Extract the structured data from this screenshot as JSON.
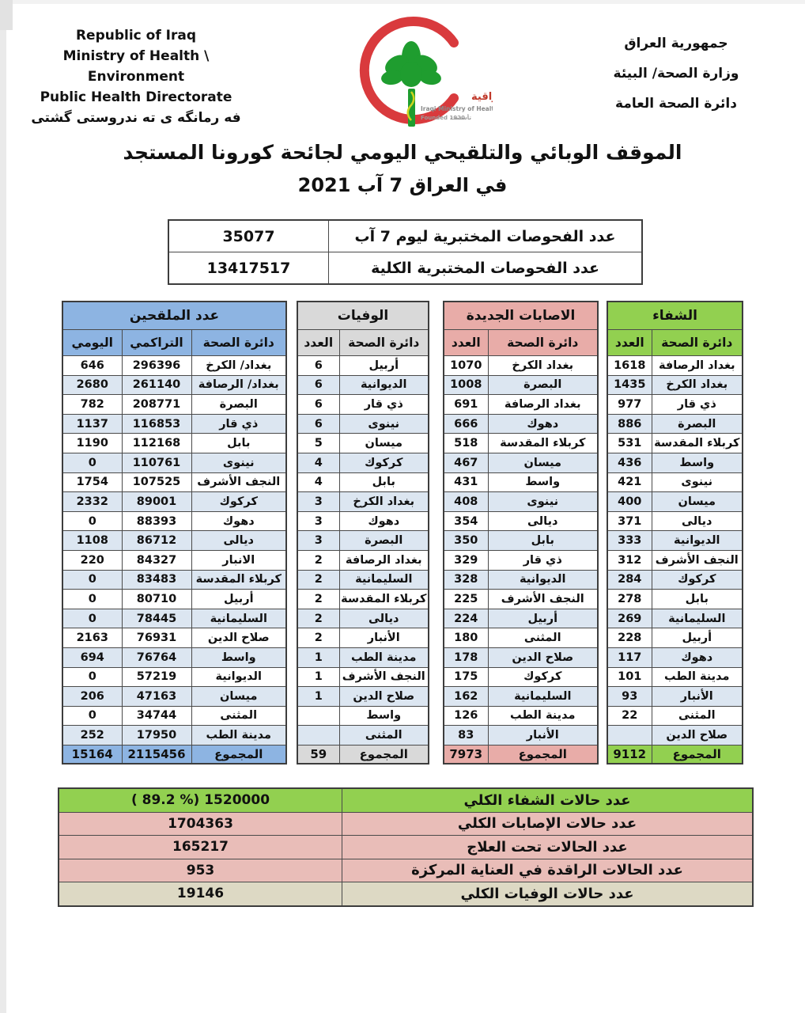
{
  "page": {
    "header_left": {
      "line1": "Republic of Iraq",
      "line2": "Ministry of Health \\ Environment",
      "line3": "Public Health Directorate",
      "line4": "فه رمانگه ی ته ندروستی گشتی"
    },
    "header_right": {
      "line1": "جمهورية العراق",
      "line2": "وزارة الصحة/ البيئة",
      "line3": "دائرة الصحة العامة"
    },
    "logo": {
      "arabic_name": "وزارة الصحة العراقية",
      "english_name": "Iraqi Ministry of Health",
      "founded": "Founded 1920",
      "founded_ar": "تأسست",
      "crescent_color": "#d93a3d",
      "tree_color": "#1f9d2f"
    },
    "title_line1": "الموقف الوبائي والتلقيحي اليومي لجائحة كورونا المستجد",
    "title_line2": "في العراق  7  آب  2021"
  },
  "tests_summary": {
    "rows": [
      {
        "label": "عدد الفحوصات المختبرية  ليوم 7 آب",
        "value": "35077"
      },
      {
        "label": "عدد الفحوصات المختبرية الكلية",
        "value": "13417517"
      }
    ]
  },
  "tables": {
    "vaccinated": {
      "title": "عدد الملقحين",
      "theme_color": "#8DB4E2",
      "stripe_color": "#DCE6F1",
      "columns": [
        "دائرة الصحة",
        "التراكمي",
        "اليومي"
      ],
      "rows": [
        {
          "name": "بغداد/ الكرخ",
          "cumulative": "296396",
          "daily": "646"
        },
        {
          "name": "بغداد/ الرصافة",
          "cumulative": "261140",
          "daily": "2680"
        },
        {
          "name": "البصرة",
          "cumulative": "208771",
          "daily": "782"
        },
        {
          "name": "ذي قار",
          "cumulative": "116853",
          "daily": "1137"
        },
        {
          "name": "بابل",
          "cumulative": "112168",
          "daily": "1190"
        },
        {
          "name": "نينوى",
          "cumulative": "110761",
          "daily": "0"
        },
        {
          "name": "النجف الأشرف",
          "cumulative": "107525",
          "daily": "1754"
        },
        {
          "name": "كركوك",
          "cumulative": "89001",
          "daily": "2332"
        },
        {
          "name": "دهوك",
          "cumulative": "88393",
          "daily": "0"
        },
        {
          "name": "ديالى",
          "cumulative": "86712",
          "daily": "1108"
        },
        {
          "name": "الانبار",
          "cumulative": "84327",
          "daily": "220"
        },
        {
          "name": "كربلاء المقدسة",
          "cumulative": "83483",
          "daily": "0"
        },
        {
          "name": "أربيل",
          "cumulative": "80710",
          "daily": "0"
        },
        {
          "name": "السليمانية",
          "cumulative": "78445",
          "daily": "0"
        },
        {
          "name": "صلاح الدين",
          "cumulative": "76931",
          "daily": "2163"
        },
        {
          "name": "واسط",
          "cumulative": "76764",
          "daily": "694"
        },
        {
          "name": "الديوانية",
          "cumulative": "57219",
          "daily": "0"
        },
        {
          "name": "ميسان",
          "cumulative": "47163",
          "daily": "206"
        },
        {
          "name": "المثنى",
          "cumulative": "34744",
          "daily": "0"
        },
        {
          "name": "مدينة الطب",
          "cumulative": "17950",
          "daily": "252"
        }
      ],
      "total": {
        "label": "المجموع",
        "cumulative": "2115456",
        "daily": "15164"
      }
    },
    "deaths": {
      "title": "الوفيات",
      "theme_color": "#D9D9D9",
      "columns": [
        "دائرة الصحة",
        "العدد"
      ],
      "rows": [
        {
          "name": "أربيل",
          "count": "6"
        },
        {
          "name": "الديوانية",
          "count": "6"
        },
        {
          "name": "ذي قار",
          "count": "6"
        },
        {
          "name": "نينوى",
          "count": "6"
        },
        {
          "name": "ميسان",
          "count": "5"
        },
        {
          "name": "كركوك",
          "count": "4"
        },
        {
          "name": "بابل",
          "count": "4"
        },
        {
          "name": "بغداد الكرخ",
          "count": "3"
        },
        {
          "name": "دهوك",
          "count": "3"
        },
        {
          "name": "البصرة",
          "count": "3"
        },
        {
          "name": "بغداد الرصافة",
          "count": "2"
        },
        {
          "name": "السليمانية",
          "count": "2"
        },
        {
          "name": "كربلاء المقدسة",
          "count": "2"
        },
        {
          "name": "ديالى",
          "count": "2"
        },
        {
          "name": "الأنبار",
          "count": "2"
        },
        {
          "name": "مدينة الطب",
          "count": "1"
        },
        {
          "name": "النجف الأشرف",
          "count": "1"
        },
        {
          "name": "صلاح الدين",
          "count": "1"
        },
        {
          "name": "واسط",
          "count": ""
        },
        {
          "name": "المثنى",
          "count": ""
        }
      ],
      "total": {
        "label": "المجموع",
        "count": "59"
      }
    },
    "infections": {
      "title": "الاصابات الجديدة",
      "theme_color": "#E8ACA8",
      "columns": [
        "دائرة الصحة",
        "العدد"
      ],
      "rows": [
        {
          "name": "بغداد الكرخ",
          "count": "1070"
        },
        {
          "name": "البصرة",
          "count": "1008"
        },
        {
          "name": "بغداد الرصافة",
          "count": "691"
        },
        {
          "name": "دهوك",
          "count": "666"
        },
        {
          "name": "كربلاء المقدسة",
          "count": "518"
        },
        {
          "name": "ميسان",
          "count": "467"
        },
        {
          "name": "واسط",
          "count": "431"
        },
        {
          "name": "نينوى",
          "count": "408"
        },
        {
          "name": "ديالى",
          "count": "354"
        },
        {
          "name": "بابل",
          "count": "350"
        },
        {
          "name": "ذي قار",
          "count": "329"
        },
        {
          "name": "الديوانية",
          "count": "328"
        },
        {
          "name": "النجف الأشرف",
          "count": "225"
        },
        {
          "name": "أربيل",
          "count": "224"
        },
        {
          "name": "المثنى",
          "count": "180"
        },
        {
          "name": "صلاح الدين",
          "count": "178"
        },
        {
          "name": "كركوك",
          "count": "175"
        },
        {
          "name": "السليمانية",
          "count": "162"
        },
        {
          "name": "مدينة الطب",
          "count": "126"
        },
        {
          "name": "الأنبار",
          "count": "83"
        }
      ],
      "total": {
        "label": "المجموع",
        "count": "7973"
      }
    },
    "recovery": {
      "title": "الشفاء",
      "theme_color": "#92D050",
      "columns": [
        "دائرة الصحة",
        "العدد"
      ],
      "rows": [
        {
          "name": "بغداد الرصافة",
          "count": "1618"
        },
        {
          "name": "بغداد الكرخ",
          "count": "1435"
        },
        {
          "name": "ذي قار",
          "count": "977"
        },
        {
          "name": "البصرة",
          "count": "886"
        },
        {
          "name": "كربلاء المقدسة",
          "count": "531"
        },
        {
          "name": "واسط",
          "count": "436"
        },
        {
          "name": "نينوى",
          "count": "421"
        },
        {
          "name": "ميسان",
          "count": "400"
        },
        {
          "name": "ديالى",
          "count": "371"
        },
        {
          "name": "الديوانية",
          "count": "333"
        },
        {
          "name": "النجف الأشرف",
          "count": "312"
        },
        {
          "name": "كركوك",
          "count": "284"
        },
        {
          "name": "بابل",
          "count": "278"
        },
        {
          "name": "السليمانية",
          "count": "269"
        },
        {
          "name": "أربيل",
          "count": "228"
        },
        {
          "name": "دهوك",
          "count": "117"
        },
        {
          "name": "مدينة الطب",
          "count": "101"
        },
        {
          "name": "الأنبار",
          "count": "93"
        },
        {
          "name": "المثنى",
          "count": "22"
        },
        {
          "name": "صلاح الدين",
          "count": ""
        }
      ],
      "total": {
        "label": "المجموع",
        "count": "9112"
      }
    }
  },
  "totals_summary": {
    "rows": [
      {
        "label": "عدد حالات الشفاء الكلي",
        "value": "( 89.2 %)  1520000",
        "color": "green"
      },
      {
        "label": "عدد حالات الإصابات الكلي",
        "value": "1704363",
        "color": "pink"
      },
      {
        "label": "عدد الحالات تحت العلاج",
        "value": "165217",
        "color": "pink"
      },
      {
        "label": "عدد الحالات الراقدة في العناية المركزة",
        "value": "953",
        "color": "pink"
      },
      {
        "label": "عدد حالات الوفيات الكلي",
        "value": "19146",
        "color": "tan"
      }
    ]
  }
}
